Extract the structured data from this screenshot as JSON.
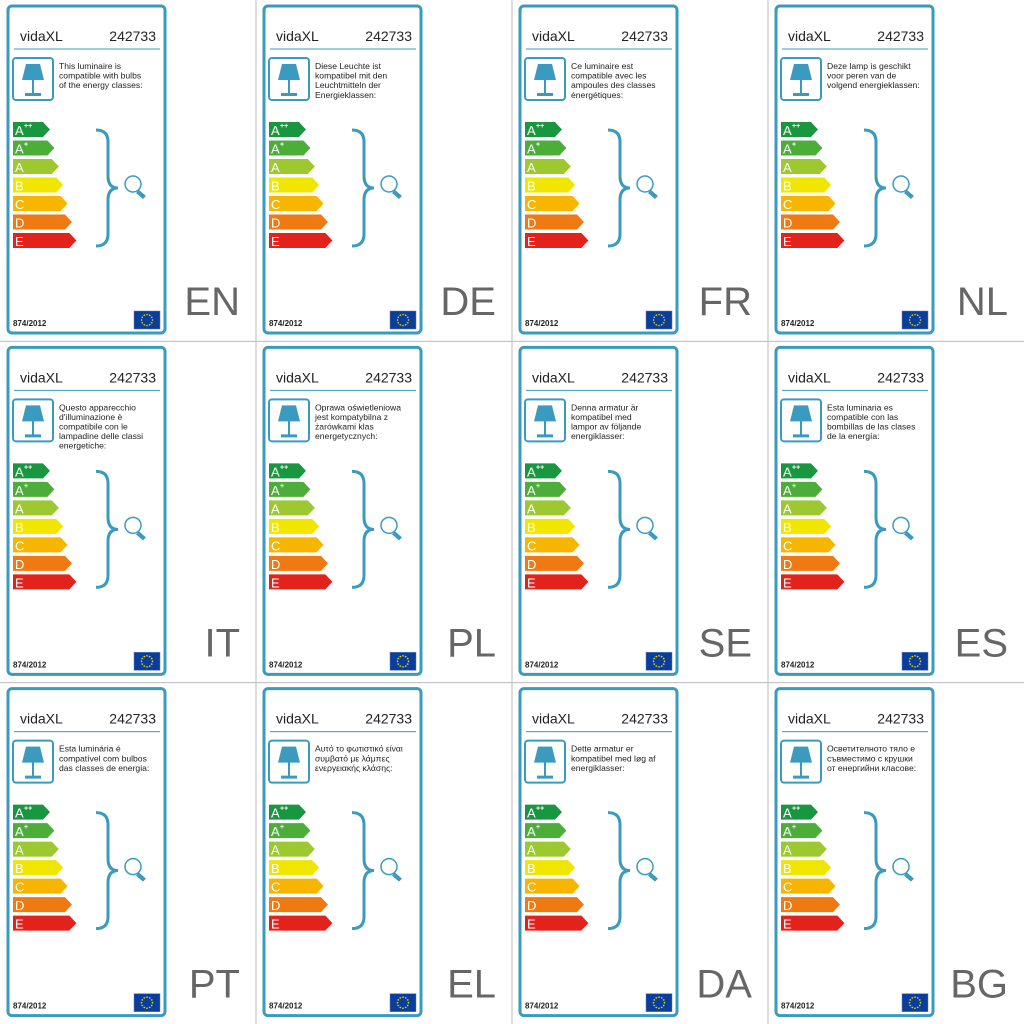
{
  "brand": "vidaXL",
  "product_code": "242733",
  "regulation": "874/2012",
  "energy_classes": [
    {
      "letter": "A",
      "sup": "++",
      "color": "#1a9641"
    },
    {
      "letter": "A",
      "sup": "+",
      "color": "#4cae38"
    },
    {
      "letter": "A",
      "color": "#9cc830"
    },
    {
      "letter": "B",
      "color": "#f0e600"
    },
    {
      "letter": "C",
      "color": "#f7b500"
    },
    {
      "letter": "D",
      "color": "#ef7a12"
    },
    {
      "letter": "E",
      "color": "#e3231b"
    }
  ],
  "labels": [
    {
      "language": "EN",
      "text": [
        "This luminaire is",
        "compatible with bulbs",
        "of the energy classes:"
      ]
    },
    {
      "language": "DE",
      "text": [
        "Diese Leuchte ist",
        "kompatibel mit den",
        "Leuchtmitteln der",
        "Energieklassen:"
      ]
    },
    {
      "language": "FR",
      "text": [
        "Ce luminaire est",
        "compatible avec les",
        "ampoules des classes",
        "énergétiques:"
      ]
    },
    {
      "language": "NL",
      "text": [
        "Deze lamp is geschikt",
        "voor peren van de",
        "volgend energieklassen:"
      ]
    },
    {
      "language": "IT",
      "text": [
        "Questo apparecchio",
        "d'illuminazione è",
        "compatibile con le",
        "lampadine delle classi",
        "energetiche:"
      ]
    },
    {
      "language": "PL",
      "text": [
        "Oprawa oświetleniowa",
        "jest kompatybilna z",
        "żarówkami klas",
        "energetycznych:"
      ]
    },
    {
      "language": "SE",
      "text": [
        "Denna armatur är",
        "kompatibel med",
        "lampor av följande",
        "energiklasser:"
      ]
    },
    {
      "language": "ES",
      "text": [
        "Esta luminaria es",
        "compatible con las",
        "bombillas de las clases",
        "de la energía:"
      ]
    },
    {
      "language": "PT",
      "text": [
        "Esta luminária é",
        "compatível com bulbos",
        "das classes de energia:"
      ]
    },
    {
      "language": "EL",
      "text": [
        "Αυτό το φωτιστικό είναι",
        "συμβατό με λάμπες",
        "ενεργειακής κλάσης:"
      ]
    },
    {
      "language": "DA",
      "text": [
        "Dette armatur er",
        "kompatibel med løg af",
        "energiklasser:"
      ]
    },
    {
      "language": "BG",
      "text": [
        "Осветителното тяло е",
        "съвместимо с крушки",
        "от енергийни класове:"
      ]
    }
  ]
}
